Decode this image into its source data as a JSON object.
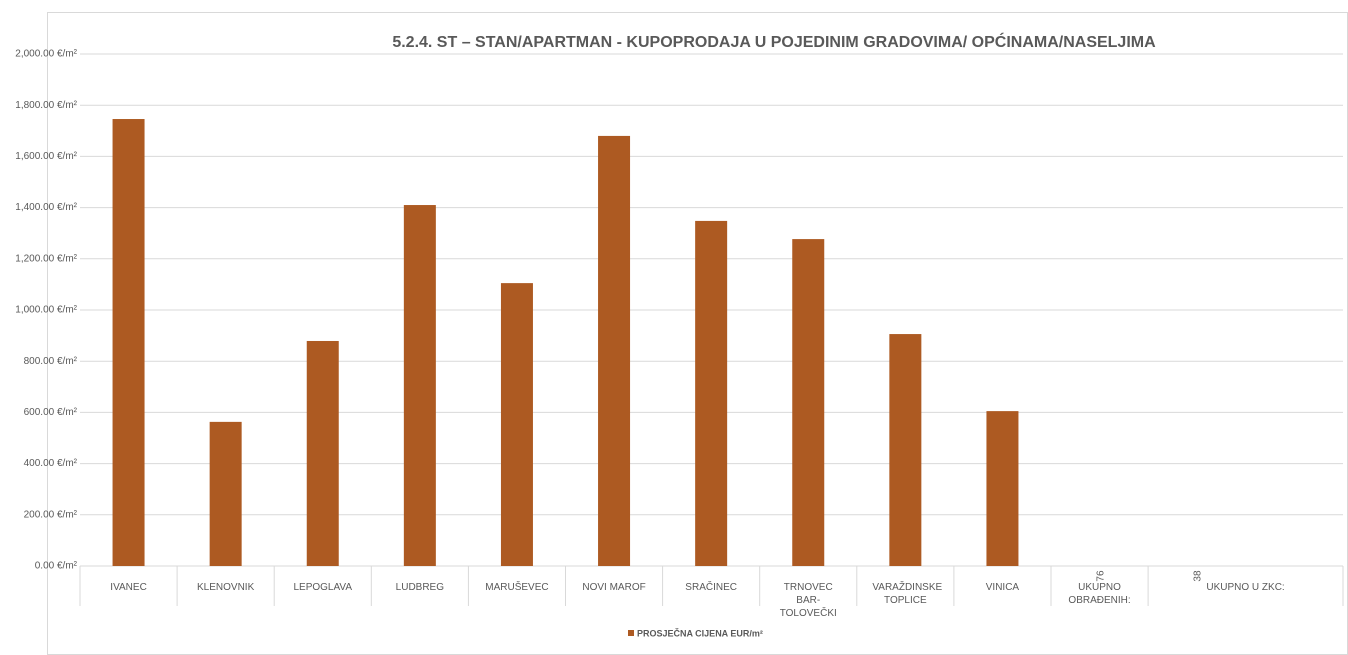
{
  "chart_data": {
    "type": "bar",
    "title": "5.2.4. ST – STAN/APARTMAN - KUPOPRODAJA U POJEDINIM GRADOVIMA/ OPĆINAMA/NASELJIMA",
    "categories": [
      "IVANEC",
      "KLENOVNIK",
      "LEPOGLAVA",
      "LUDBREG",
      "MARUŠEVEC",
      "NOVI MAROF",
      "SRAČINEC",
      "TRNOVEC BAR-TOLOVEČKI",
      "VARAŽDINSKE TOPLICE",
      "VINICA",
      "UKUPNO OBRAĐENIH:",
      "UKUPNO U ZKC:"
    ],
    "series": [
      {
        "name": "PROSJEČNA CIJENA EUR/m²",
        "color": "#ad5a22",
        "values": [
          1746,
          563,
          879,
          1410,
          1105,
          1680,
          1348,
          1277,
          906,
          605,
          null,
          null
        ]
      }
    ],
    "annotations": [
      null,
      null,
      null,
      null,
      null,
      null,
      null,
      null,
      null,
      null,
      "76",
      "38"
    ],
    "ylim": [
      0,
      2000
    ],
    "yticks": [
      {
        "value": 0,
        "label": "0.00 €/m²"
      },
      {
        "value": 200,
        "label": "200.00 €/m²"
      },
      {
        "value": 400,
        "label": "400.00 €/m²"
      },
      {
        "value": 600,
        "label": "600.00 €/m²"
      },
      {
        "value": 800,
        "label": "800.00 €/m²"
      },
      {
        "value": 1000,
        "label": "1,000.00 €/m²"
      },
      {
        "value": 1200,
        "label": "1,200.00 €/m²"
      },
      {
        "value": 1400,
        "label": "1,400.00 €/m²"
      },
      {
        "value": 1600,
        "label": "1,600.00 €/m²"
      },
      {
        "value": 1800,
        "label": "1,800.00 €/m²"
      },
      {
        "value": 2000,
        "label": "2,000.00 €/m²"
      }
    ],
    "grid": true,
    "legend": "bottom"
  }
}
